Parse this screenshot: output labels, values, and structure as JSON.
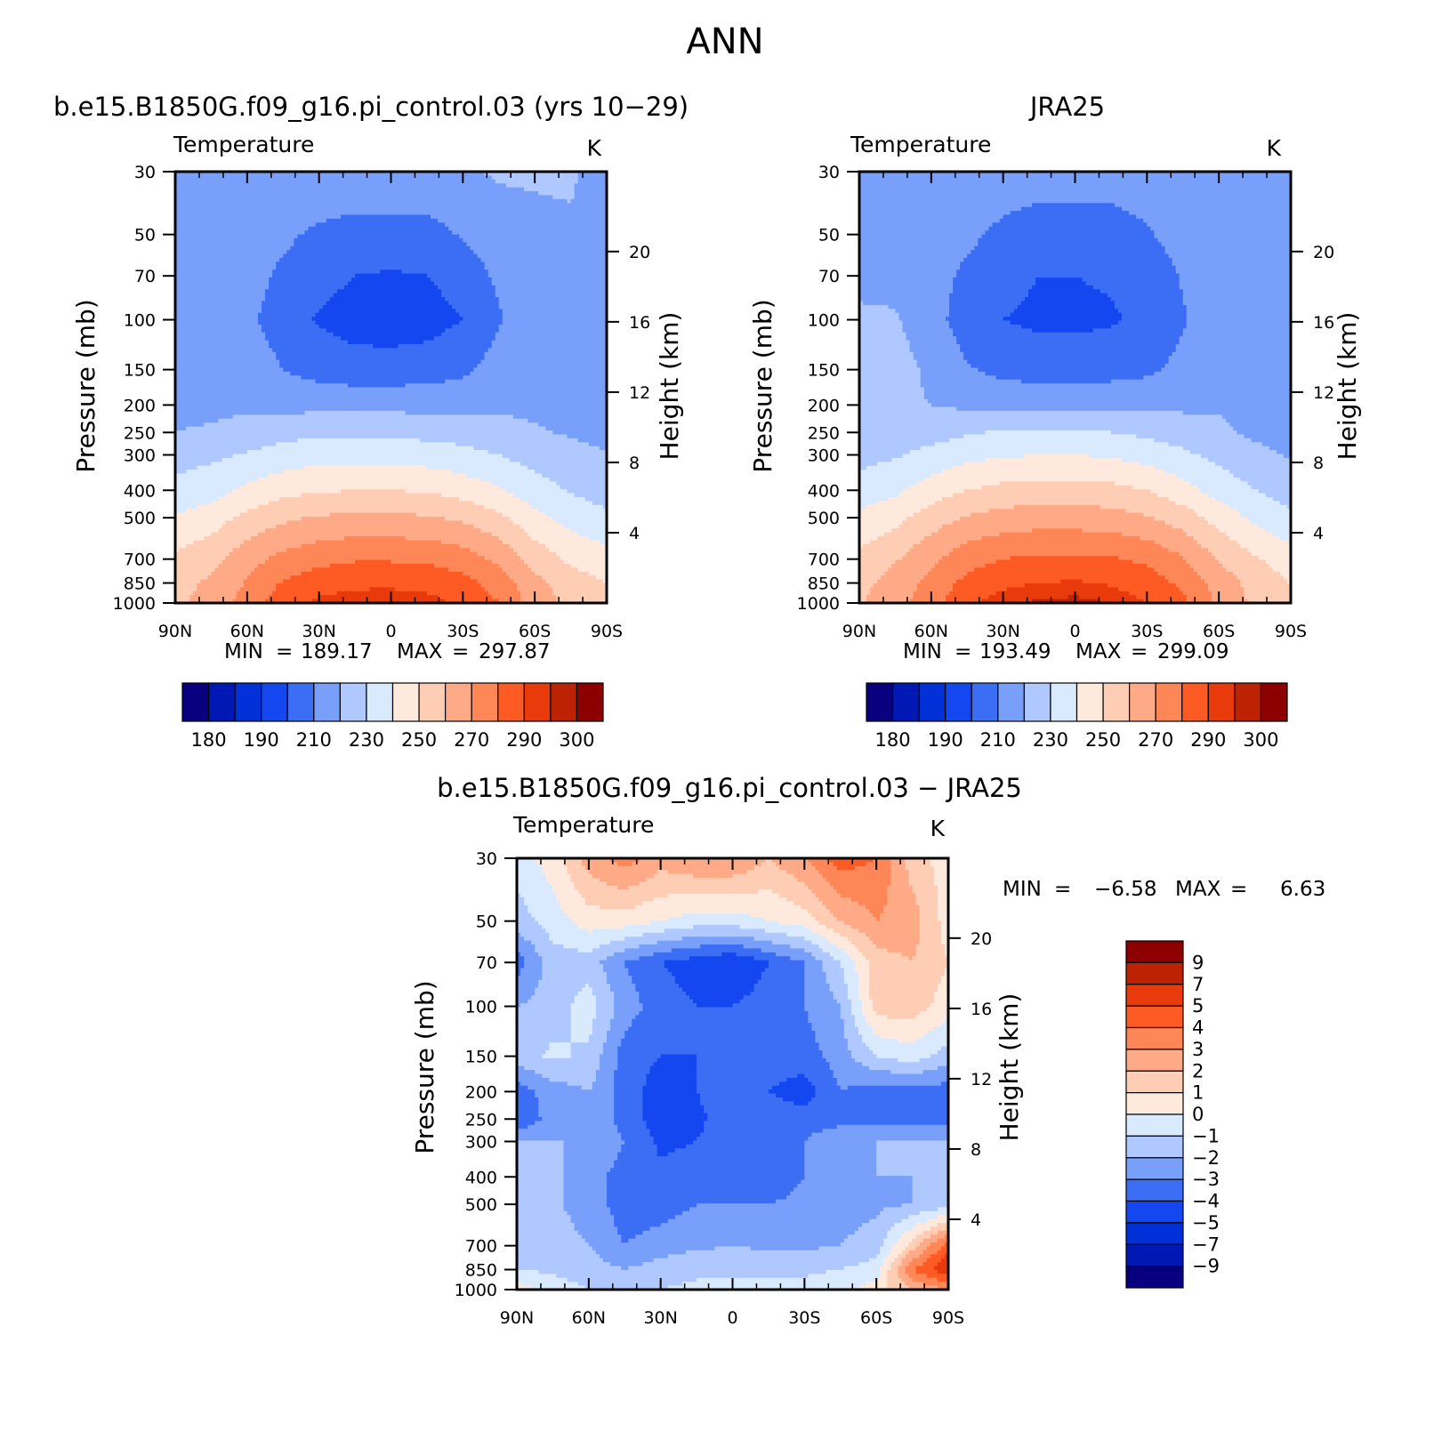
{
  "figure": {
    "title": "ANN"
  },
  "colors": {
    "temperature": [
      "#08007e",
      "#0019b4",
      "#0030d8",
      "#1447f0",
      "#3c6ef5",
      "#78a0fa",
      "#afc8ff",
      "#d9eaff",
      "#ffe9dc",
      "#ffcdb4",
      "#ffaa87",
      "#ff8656",
      "#fe5a23",
      "#e83a0b",
      "#bd2203",
      "#8c0000"
    ],
    "difference": [
      "#08007e",
      "#0019b4",
      "#0030d8",
      "#1447f0",
      "#3c6ef5",
      "#78a0fa",
      "#afc8ff",
      "#d9eaff",
      "#ffe9dc",
      "#ffcdb4",
      "#ffaa87",
      "#ff8656",
      "#fe5a23",
      "#e83a0b",
      "#bd2203",
      "#8c0000"
    ]
  },
  "chart_data": [
    {
      "type": "heatmap",
      "title": "b.e15.B1850G.f09_g16.pi_control.03 (yrs 10-29)",
      "subtitle_left": "Temperature",
      "subtitle_right": "K",
      "ylabel": "Pressure (mb)",
      "ylabel_right": "Height (km)",
      "x_ticks": [
        "90N",
        "60N",
        "30N",
        "0",
        "30S",
        "60S",
        "90S"
      ],
      "x_range": [
        90,
        -90
      ],
      "y_ticks": [
        30,
        50,
        70,
        100,
        150,
        200,
        250,
        300,
        400,
        500,
        700,
        850,
        1000
      ],
      "y_range": [
        30,
        1000
      ],
      "y_scale": "log",
      "right_ticks": [
        20,
        16,
        12,
        8,
        4
      ],
      "stats": {
        "min_label": "MIN",
        "min": "189.17",
        "max_label": "MAX",
        "max": "297.87"
      },
      "colorbar_labels": [
        "180",
        "190",
        "210",
        "230",
        "250",
        "270",
        "290",
        "300"
      ],
      "field": [
        {
          "p": 30,
          "values": [
            218,
            218,
            219,
            219,
            219,
            218,
            219,
            219,
            219,
            221,
            221,
            221,
            217
          ]
        },
        {
          "p": 50,
          "values": [
            218,
            217,
            216,
            212,
            208,
            206,
            206,
            206,
            211,
            216,
            218,
            219,
            216
          ]
        },
        {
          "p": 70,
          "values": [
            218,
            217,
            214,
            208,
            203,
            200,
            199,
            200,
            204,
            212,
            217,
            219,
            215
          ]
        },
        {
          "p": 100,
          "values": [
            217,
            216,
            212,
            205,
            199,
            196,
            195,
            196,
            200,
            209,
            216,
            218,
            215
          ]
        },
        {
          "p": 150,
          "values": [
            217,
            217,
            216,
            210,
            206,
            204,
            204,
            205,
            208,
            214,
            217,
            218,
            214
          ]
        },
        {
          "p": 200,
          "values": [
            218,
            218,
            218,
            217,
            217,
            217,
            217,
            217,
            217,
            218,
            218,
            218,
            215
          ]
        },
        {
          "p": 250,
          "values": [
            220,
            221,
            224,
            227,
            228,
            228,
            228,
            227,
            226,
            224,
            221,
            219,
            216
          ]
        },
        {
          "p": 300,
          "values": [
            226,
            228,
            231,
            234,
            236,
            236,
            236,
            235,
            233,
            230,
            226,
            224,
            221
          ]
        },
        {
          "p": 400,
          "values": [
            233,
            236,
            242,
            247,
            249,
            250,
            250,
            249,
            246,
            241,
            234,
            229,
            226
          ]
        },
        {
          "p": 500,
          "values": [
            241,
            245,
            253,
            258,
            261,
            262,
            262,
            261,
            258,
            252,
            243,
            236,
            232
          ]
        },
        {
          "p": 700,
          "values": [
            252,
            257,
            266,
            273,
            277,
            279,
            279,
            278,
            275,
            268,
            256,
            248,
            244
          ]
        },
        {
          "p": 850,
          "values": [
            256,
            262,
            271,
            281,
            286,
            288,
            288,
            287,
            283,
            276,
            263,
            255,
            250
          ]
        },
        {
          "p": 1000,
          "values": [
            258,
            264,
            274,
            286,
            292,
            294,
            295,
            293,
            288,
            280,
            265,
            257,
            252
          ]
        }
      ]
    },
    {
      "type": "heatmap",
      "title": "JRA25",
      "subtitle_left": "Temperature",
      "subtitle_right": "K",
      "ylabel": "Pressure (mb)",
      "ylabel_right": "Height (km)",
      "x_ticks": [
        "90N",
        "60N",
        "30N",
        "0",
        "30S",
        "60S",
        "90S"
      ],
      "x_range": [
        90,
        -90
      ],
      "y_ticks": [
        30,
        50,
        70,
        100,
        150,
        200,
        250,
        300,
        400,
        500,
        700,
        850,
        1000
      ],
      "y_range": [
        30,
        1000
      ],
      "y_scale": "log",
      "right_ticks": [
        20,
        16,
        12,
        8,
        4
      ],
      "stats": {
        "min_label": "MIN",
        "min": "193.49",
        "max_label": "MAX",
        "max": "299.09"
      },
      "colorbar_labels": [
        "180",
        "190",
        "210",
        "230",
        "250",
        "270",
        "290",
        "300"
      ],
      "field": [
        {
          "p": 30,
          "values": [
            217,
            217,
            217,
            216,
            215,
            214,
            214,
            214,
            215,
            216,
            217,
            218,
            214
          ]
        },
        {
          "p": 50,
          "values": [
            217,
            217,
            216,
            212,
            208,
            206,
            206,
            206,
            209,
            214,
            216,
            217,
            214
          ]
        },
        {
          "p": 70,
          "values": [
            217,
            217,
            214,
            208,
            203,
            200,
            200,
            201,
            204,
            211,
            216,
            217,
            213
          ]
        },
        {
          "p": 100,
          "values": [
            222,
            221,
            214,
            205,
            200,
            198,
            198,
            199,
            202,
            209,
            216,
            216,
            212
          ]
        },
        {
          "p": 150,
          "values": [
            225,
            224,
            218,
            211,
            207,
            205,
            205,
            206,
            208,
            213,
            217,
            217,
            210
          ]
        },
        {
          "p": 200,
          "values": [
            223,
            222,
            220,
            218,
            218,
            218,
            218,
            218,
            218,
            218,
            219,
            217,
            212
          ]
        },
        {
          "p": 250,
          "values": [
            223,
            224,
            226,
            229,
            231,
            231,
            231,
            230,
            228,
            225,
            222,
            218,
            215
          ]
        },
        {
          "p": 300,
          "values": [
            227,
            229,
            233,
            237,
            239,
            240,
            240,
            239,
            236,
            232,
            227,
            223,
            219
          ]
        },
        {
          "p": 400,
          "values": [
            234,
            238,
            245,
            250,
            253,
            254,
            254,
            253,
            250,
            244,
            236,
            230,
            225
          ]
        },
        {
          "p": 500,
          "values": [
            242,
            247,
            255,
            261,
            264,
            265,
            265,
            264,
            261,
            255,
            246,
            238,
            232
          ]
        },
        {
          "p": 700,
          "values": [
            253,
            259,
            268,
            276,
            280,
            282,
            282,
            281,
            278,
            271,
            259,
            251,
            245
          ]
        },
        {
          "p": 850,
          "values": [
            257,
            264,
            273,
            283,
            288,
            290,
            291,
            289,
            285,
            278,
            266,
            256,
            250
          ]
        },
        {
          "p": 1000,
          "values": [
            259,
            266,
            276,
            288,
            294,
            296,
            297,
            295,
            290,
            282,
            268,
            258,
            252
          ]
        }
      ]
    },
    {
      "type": "heatmap",
      "title": "b.e15.B1850G.f09_g16.pi_control.03 - JRA25",
      "subtitle_left": "Temperature",
      "subtitle_right": "K",
      "ylabel": "Pressure (mb)",
      "ylabel_right": "Height (km)",
      "x_ticks": [
        "90N",
        "60N",
        "30N",
        "0",
        "30S",
        "60S",
        "90S"
      ],
      "x_range": [
        90,
        -90
      ],
      "y_ticks": [
        30,
        50,
        70,
        100,
        150,
        200,
        250,
        300,
        400,
        500,
        700,
        850,
        1000
      ],
      "y_range": [
        30,
        1000
      ],
      "y_scale": "log",
      "right_ticks": [
        20,
        16,
        12,
        8,
        4
      ],
      "stats": {
        "min_label": "MIN",
        "min": "-6.58",
        "max_label": "MAX",
        "max": "6.63"
      },
      "colorbar_labels": [
        "9",
        "7",
        "5",
        "4",
        "3",
        "2",
        "1",
        "0",
        "-1",
        "-2",
        "-3",
        "-4",
        "-5",
        "-7",
        "-9"
      ],
      "field": [
        {
          "p": 30,
          "values": [
            -0.5,
            0.5,
            2.5,
            3.5,
            2.5,
            3,
            3,
            2,
            3,
            4.5,
            4,
            1.5,
            0.5
          ]
        },
        {
          "p": 50,
          "values": [
            -1.5,
            -0.5,
            0.5,
            0.5,
            0,
            -0.5,
            -0.5,
            0,
            0.5,
            2,
            3,
            2.5,
            0.5
          ]
        },
        {
          "p": 70,
          "values": [
            -3.5,
            -1.5,
            -1.5,
            -3,
            -4,
            -4.5,
            -5,
            -4,
            -3,
            -1,
            1.5,
            2,
            1
          ]
        },
        {
          "p": 100,
          "values": [
            -2,
            -1.5,
            -0.5,
            -2.5,
            -3.5,
            -4,
            -4,
            -3.5,
            -3,
            -2,
            1.5,
            1.5,
            0.5
          ]
        },
        {
          "p": 150,
          "values": [
            -1.5,
            -0.8,
            -1.2,
            -3.5,
            -4,
            -4,
            -3.5,
            -3.5,
            -3.5,
            -2.5,
            -1,
            -0.5,
            -1.5
          ]
        },
        {
          "p": 200,
          "values": [
            -3.5,
            -2.5,
            -2,
            -3.5,
            -4.5,
            -4,
            -3.5,
            -4,
            -4.5,
            -3,
            -3.5,
            -3.5,
            -3.5
          ]
        },
        {
          "p": 250,
          "values": [
            -4,
            -2.5,
            -2,
            -3.5,
            -4.5,
            -4.2,
            -3.5,
            -3.5,
            -3.5,
            -3.5,
            -3.5,
            -3.5,
            -3.5
          ]
        },
        {
          "p": 300,
          "values": [
            -2,
            -2,
            -2,
            -3,
            -4.2,
            -4,
            -3.5,
            -3.5,
            -3,
            -2,
            -2,
            -2,
            -2
          ]
        },
        {
          "p": 400,
          "values": [
            -1.5,
            -1.8,
            -2.5,
            -3.5,
            -3.8,
            -3.5,
            -3.5,
            -3.5,
            -3,
            -2.5,
            -2,
            -2,
            -1.5
          ]
        },
        {
          "p": 500,
          "values": [
            -1.5,
            -1.8,
            -2.5,
            -3.5,
            -3.5,
            -3,
            -3,
            -3,
            -2.8,
            -2.5,
            -2.2,
            -2,
            -1.5
          ]
        },
        {
          "p": 700,
          "values": [
            -1.2,
            -1.5,
            -2,
            -3,
            -2.5,
            -2.2,
            -2,
            -2.2,
            -2.2,
            -2,
            -1.5,
            1.5,
            4.5
          ]
        },
        {
          "p": 850,
          "values": [
            -1,
            -1.2,
            -1.5,
            -2,
            -1.5,
            -1.2,
            -1.2,
            -1.2,
            -1.2,
            -1,
            -0.5,
            4,
            6
          ]
        },
        {
          "p": 1000,
          "values": [
            0.5,
            -0.5,
            -1,
            -1.2,
            -1,
            -0.8,
            -0.8,
            -0.8,
            -0.6,
            -0.3,
            0.5,
            2,
            3
          ]
        }
      ]
    }
  ]
}
